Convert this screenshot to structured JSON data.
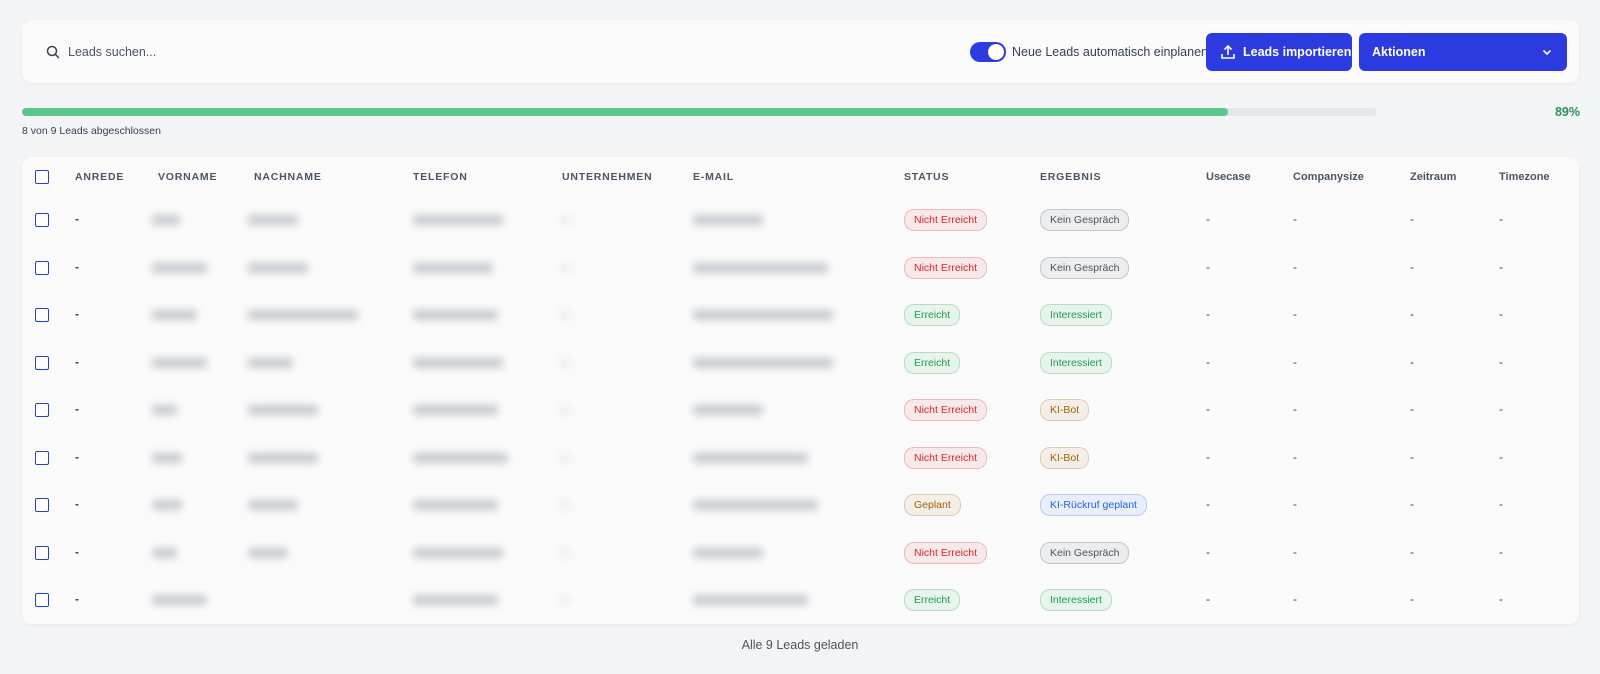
{
  "toolbar": {
    "search_placeholder": "Leads suchen...",
    "toggle_label": "Neue Leads automatisch einplanen",
    "import_button": "Leads importieren",
    "actions_button": "Aktionen"
  },
  "progress": {
    "value": 89,
    "label": "89%",
    "caption": "8 von 9 Leads abgeschlossen"
  },
  "table": {
    "columns": [
      "ANREDE",
      "VORNAME",
      "NACHNAME",
      "TELEFON",
      "UNTERNEHMEN",
      "E-MAIL",
      "STATUS",
      "ERGEBNIS",
      "Usecase",
      "Companysize",
      "Zeitraum",
      "Timezone"
    ],
    "rows": [
      {
        "anrede": "-",
        "status": {
          "label": "Nicht Erreicht",
          "color": "#dc2626"
        },
        "ergebnis": {
          "label": "Kein Gespräch",
          "color": "#4b5563"
        },
        "usecase": "-",
        "companysize": "-",
        "zeitraum": "-",
        "timezone": "-"
      },
      {
        "anrede": "-",
        "status": {
          "label": "Nicht Erreicht",
          "color": "#dc2626"
        },
        "ergebnis": {
          "label": "Kein Gespräch",
          "color": "#4b5563"
        },
        "usecase": "-",
        "companysize": "-",
        "zeitraum": "-",
        "timezone": "-"
      },
      {
        "anrede": "-",
        "status": {
          "label": "Erreicht",
          "color": "#16a34a"
        },
        "ergebnis": {
          "label": "Interessiert",
          "color": "#16a34a"
        },
        "usecase": "-",
        "companysize": "-",
        "zeitraum": "-",
        "timezone": "-"
      },
      {
        "anrede": "-",
        "status": {
          "label": "Erreicht",
          "color": "#16a34a"
        },
        "ergebnis": {
          "label": "Interessiert",
          "color": "#16a34a"
        },
        "usecase": "-",
        "companysize": "-",
        "zeitraum": "-",
        "timezone": "-"
      },
      {
        "anrede": "-",
        "status": {
          "label": "Nicht Erreicht",
          "color": "#dc2626"
        },
        "ergebnis": {
          "label": "KI-Bot",
          "color": "#a16207"
        },
        "usecase": "-",
        "companysize": "-",
        "zeitraum": "-",
        "timezone": "-"
      },
      {
        "anrede": "-",
        "status": {
          "label": "Nicht Erreicht",
          "color": "#dc2626"
        },
        "ergebnis": {
          "label": "KI-Bot",
          "color": "#a16207"
        },
        "usecase": "-",
        "companysize": "-",
        "zeitraum": "-",
        "timezone": "-"
      },
      {
        "anrede": "-",
        "status": {
          "label": "Geplant",
          "color": "#a16207"
        },
        "ergebnis": {
          "label": "KI-Rückruf geplant",
          "color": "#2563eb"
        },
        "usecase": "-",
        "companysize": "-",
        "zeitraum": "-",
        "timezone": "-"
      },
      {
        "anrede": "-",
        "status": {
          "label": "Nicht Erreicht",
          "color": "#dc2626"
        },
        "ergebnis": {
          "label": "Kein Gespräch",
          "color": "#4b5563"
        },
        "usecase": "-",
        "companysize": "-",
        "zeitraum": "-",
        "timezone": "-"
      },
      {
        "anrede": "-",
        "status": {
          "label": "Erreicht",
          "color": "#16a34a"
        },
        "ergebnis": {
          "label": "Interessiert",
          "color": "#16a34a"
        },
        "usecase": "-",
        "companysize": "-",
        "zeitraum": "-",
        "timezone": "-"
      }
    ]
  },
  "footer": "Alle 9 Leads geladen"
}
